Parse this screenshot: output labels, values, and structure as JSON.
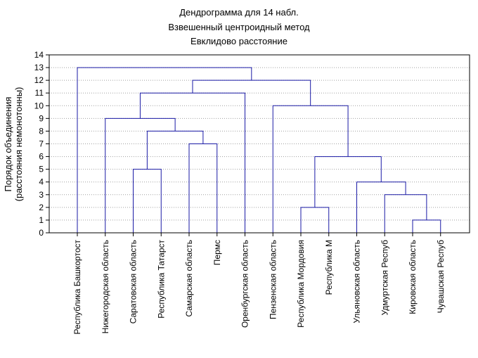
{
  "title": {
    "line1": "Дендрограмма для 14 набл.",
    "line2": "Взвешенный центроидный метод",
    "line3": "Евклидово расстояние"
  },
  "ylabel": {
    "line1": "Порядок    объединения",
    "line2": "(расстояния немонотонны)"
  },
  "colors": {
    "link": "#1a1aa6",
    "axis": "#000000",
    "grid": "#a0a0a0"
  },
  "chart_data": {
    "type": "dendrogram",
    "ylim": [
      0,
      14
    ],
    "y_ticks": [
      "0",
      "1",
      "2",
      "3",
      "4",
      "5",
      "6",
      "7",
      "8",
      "9",
      "10",
      "11",
      "12",
      "13",
      "14"
    ],
    "grid": true,
    "leaves": [
      "Республика Башкортост",
      "Нижегородская область",
      "Саратовская область",
      "Республика Татарст",
      "Самарская область",
      "Пермс",
      "Оренбургская область",
      "Пензенская область",
      "Республика Мордовия",
      "Республика М",
      "Ульяновская область",
      "Удмуртская Респуб",
      "Кировская область",
      "Чувашская Респуб"
    ],
    "merges": [
      {
        "id": "c1",
        "left": 12,
        "right": 13,
        "height": 1
      },
      {
        "id": "c2",
        "left": 8,
        "right": 9,
        "height": 2
      },
      {
        "id": "c3",
        "left": 11,
        "right": "c1",
        "height": 3
      },
      {
        "id": "c4",
        "left": 10,
        "right": "c3",
        "height": 4
      },
      {
        "id": "c5",
        "left": 2,
        "right": 3,
        "height": 5
      },
      {
        "id": "c6",
        "left": "c2",
        "right": "c4",
        "height": 6
      },
      {
        "id": "c7",
        "left": 4,
        "right": 5,
        "height": 7
      },
      {
        "id": "c8",
        "left": "c5",
        "right": "c7",
        "height": 8
      },
      {
        "id": "c9",
        "left": 1,
        "right": "c8",
        "height": 9
      },
      {
        "id": "c10",
        "left": 7,
        "right": "c6",
        "height": 10
      },
      {
        "id": "c11",
        "left": "c9",
        "right": 6,
        "height": 11
      },
      {
        "id": "c12",
        "left": "c11",
        "right": "c10",
        "height": 12
      },
      {
        "id": "c13",
        "left": 0,
        "right": "c12",
        "height": 13
      }
    ]
  }
}
